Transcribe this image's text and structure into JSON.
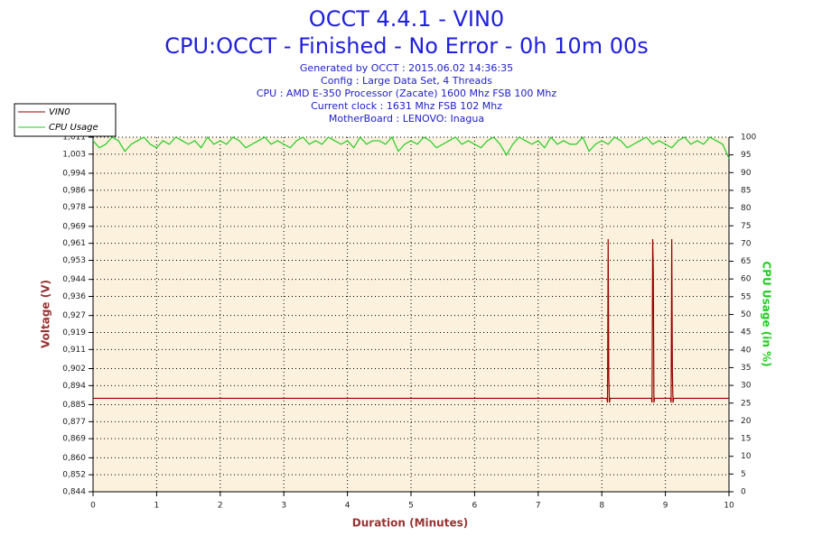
{
  "chart_data": {
    "type": "line",
    "title": "OCCT 4.4.1 - VIN0",
    "subtitle": "CPU:OCCT - Finished - No Error - 0h 10m 00s",
    "info": [
      "Generated by OCCT : 2015.06.02 14:36:35",
      "Config : Large Data Set, 4 Threads",
      "CPU : AMD E-350 Processor (Zacate) 1600 Mhz FSB 100 Mhz",
      "Current clock : 1631 Mhz FSB 102 Mhz",
      "MotherBoard : LENOVO: Inagua"
    ],
    "x_label": "Duration (Minutes)",
    "y_label": "Voltage (V)",
    "y2_label": "CPU Usage (in %)",
    "xlim": [
      0,
      10
    ],
    "xticks": [
      0,
      1,
      2,
      3,
      4,
      5,
      6,
      7,
      8,
      9,
      10
    ],
    "ylim": [
      0.844,
      1.011
    ],
    "yticks": [
      {
        "value": 0.844,
        "label": "0,844"
      },
      {
        "value": 0.852,
        "label": "0,852"
      },
      {
        "value": 0.86,
        "label": "0,860"
      },
      {
        "value": 0.869,
        "label": "0,869"
      },
      {
        "value": 0.877,
        "label": "0,877"
      },
      {
        "value": 0.885,
        "label": "0,885"
      },
      {
        "value": 0.894,
        "label": "0,894"
      },
      {
        "value": 0.902,
        "label": "0,902"
      },
      {
        "value": 0.911,
        "label": "0,911"
      },
      {
        "value": 0.919,
        "label": "0,919"
      },
      {
        "value": 0.927,
        "label": "0,927"
      },
      {
        "value": 0.936,
        "label": "0,936"
      },
      {
        "value": 0.944,
        "label": "0,944"
      },
      {
        "value": 0.953,
        "label": "0,953"
      },
      {
        "value": 0.961,
        "label": "0,961"
      },
      {
        "value": 0.969,
        "label": "0,969"
      },
      {
        "value": 0.978,
        "label": "0,978"
      },
      {
        "value": 0.986,
        "label": "0,986"
      },
      {
        "value": 0.994,
        "label": "0,994"
      },
      {
        "value": 1.003,
        "label": "1,003"
      },
      {
        "value": 1.011,
        "label": "1,011"
      }
    ],
    "y2lim": [
      0,
      100
    ],
    "y2ticks": [
      0,
      5,
      10,
      15,
      20,
      25,
      30,
      35,
      40,
      45,
      50,
      55,
      60,
      65,
      70,
      75,
      80,
      85,
      90,
      95,
      100
    ],
    "grid": true,
    "legend": "top-left",
    "series": [
      {
        "name": "VIN0",
        "color": "#990000",
        "x": [
          0,
          8.08,
          8.09,
          8.1,
          8.11,
          8.12,
          8.13,
          8.78,
          8.79,
          8.8,
          8.81,
          8.82,
          8.83,
          9.08,
          9.09,
          9.1,
          9.11,
          9.12,
          9.13,
          10
        ],
        "values": [
          0.888,
          0.888,
          0.886,
          0.963,
          0.898,
          0.886,
          0.888,
          0.888,
          0.886,
          0.963,
          0.948,
          0.886,
          0.888,
          0.888,
          0.886,
          0.963,
          0.9,
          0.886,
          0.888,
          0.888
        ]
      },
      {
        "name": "CPU Usage",
        "color": "#22cc22",
        "axis": "y2",
        "x": [
          0,
          0.1,
          0.2,
          0.3,
          0.4,
          0.5,
          0.6,
          0.7,
          0.8,
          0.9,
          1,
          1.1,
          1.2,
          1.3,
          1.4,
          1.5,
          1.6,
          1.7,
          1.8,
          1.9,
          2,
          2.1,
          2.2,
          2.3,
          2.4,
          2.5,
          2.6,
          2.7,
          2.8,
          2.9,
          3,
          3.1,
          3.2,
          3.3,
          3.4,
          3.5,
          3.6,
          3.7,
          3.8,
          3.9,
          4,
          4.1,
          4.2,
          4.3,
          4.4,
          4.5,
          4.6,
          4.7,
          4.8,
          4.9,
          5,
          5.1,
          5.2,
          5.3,
          5.4,
          5.5,
          5.6,
          5.7,
          5.8,
          5.9,
          6,
          6.1,
          6.2,
          6.3,
          6.4,
          6.5,
          6.6,
          6.7,
          6.8,
          6.9,
          7,
          7.1,
          7.2,
          7.3,
          7.4,
          7.5,
          7.6,
          7.7,
          7.8,
          7.9,
          8,
          8.1,
          8.2,
          8.3,
          8.4,
          8.5,
          8.6,
          8.7,
          8.8,
          8.9,
          9,
          9.1,
          9.2,
          9.3,
          9.4,
          9.5,
          9.6,
          9.7,
          9.8,
          9.9,
          10
        ],
        "values": [
          99,
          97,
          98,
          100,
          99,
          96,
          98,
          99,
          100,
          98,
          97,
          99,
          98,
          100,
          99,
          98,
          99,
          97,
          100,
          98,
          99,
          98,
          100,
          99,
          97,
          98,
          99,
          100,
          98,
          99,
          98,
          97,
          99,
          100,
          98,
          99,
          98,
          100,
          99,
          98,
          99,
          97,
          100,
          98,
          99,
          99,
          98,
          100,
          96,
          98,
          99,
          98,
          100,
          99,
          97,
          98,
          99,
          100,
          98,
          99,
          98,
          97,
          99,
          100,
          98,
          95,
          98,
          100,
          99,
          98,
          99,
          97,
          100,
          98,
          99,
          98,
          98,
          100,
          96,
          98,
          99,
          98,
          100,
          99,
          97,
          98,
          99,
          100,
          98,
          99,
          98,
          97,
          99,
          100,
          98,
          99,
          98,
          100,
          99,
          98,
          94
        ]
      }
    ]
  }
}
